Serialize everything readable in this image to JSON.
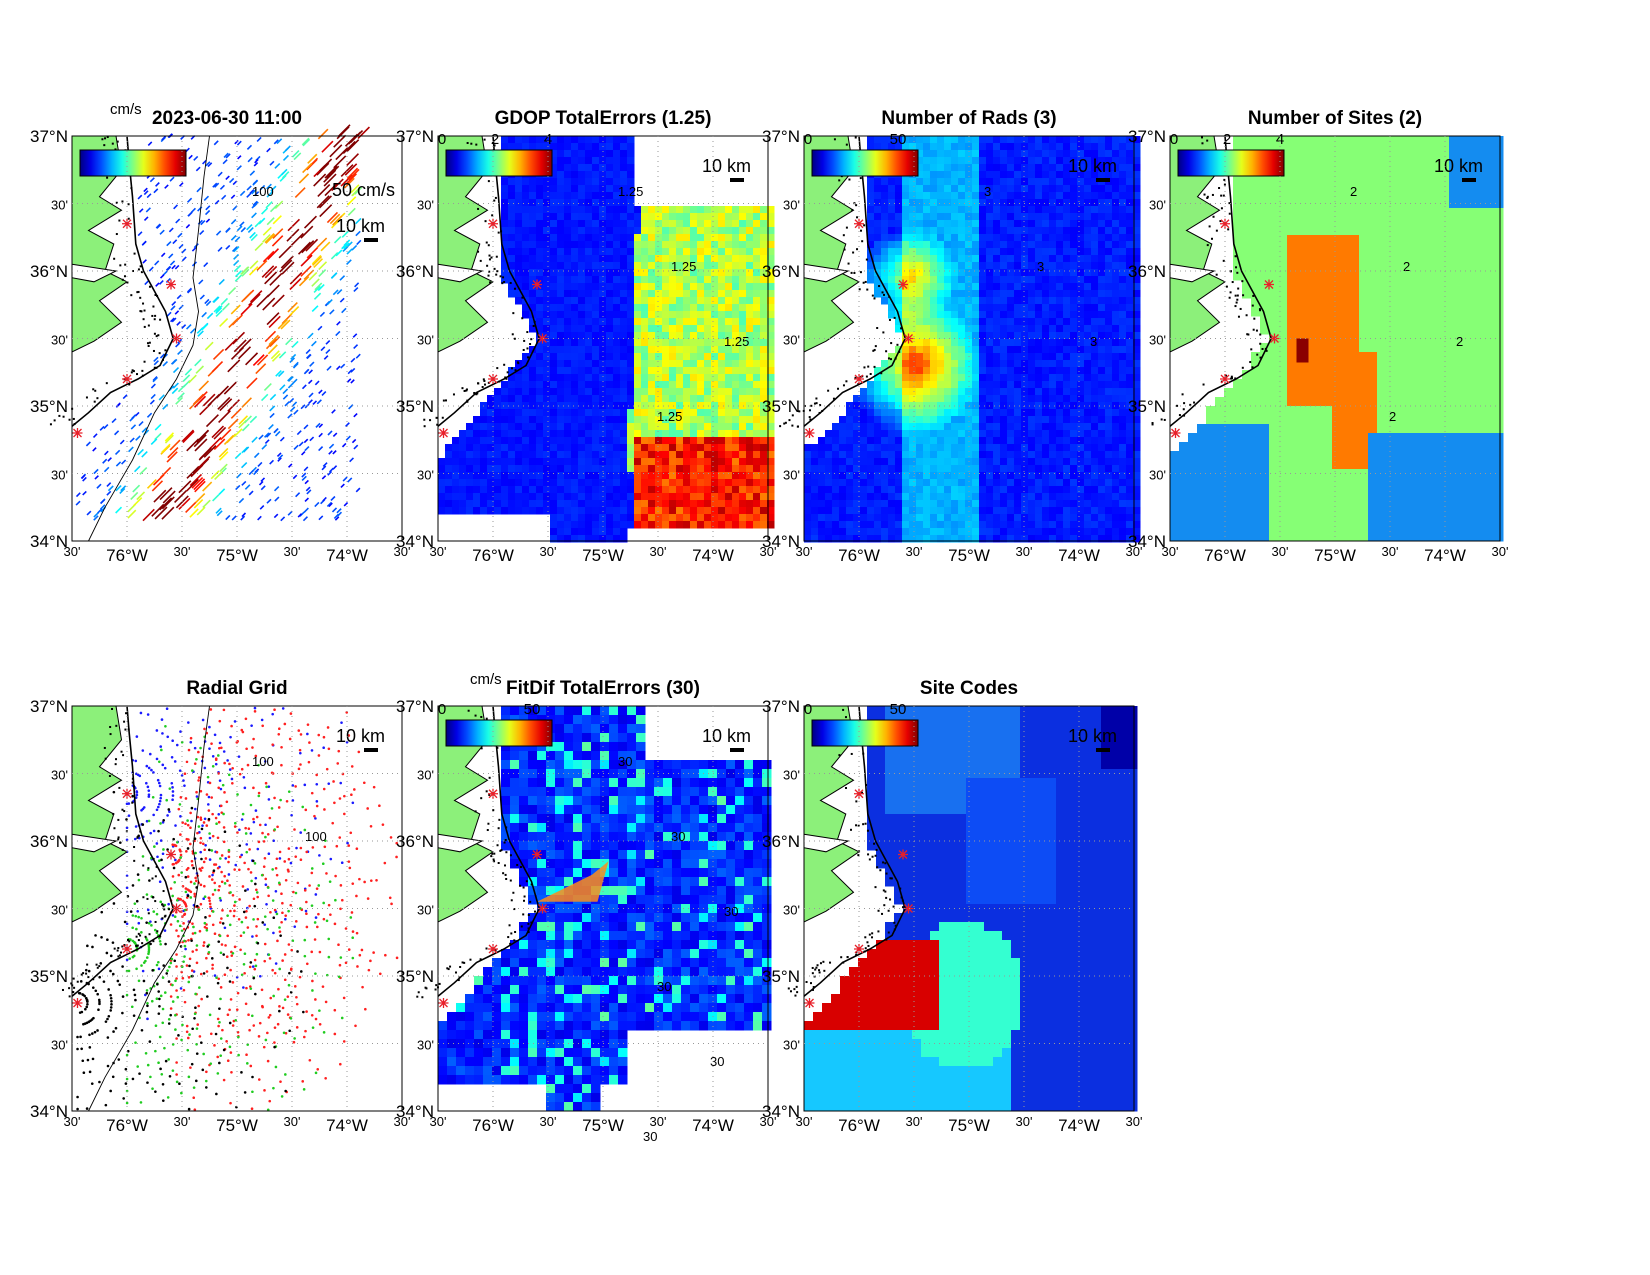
{
  "figure": {
    "timestamp": "2023-06-30 11:00",
    "overlap_label": "cm/s"
  },
  "axes": {
    "lat_labels": [
      "37°N",
      "30'",
      "36°N",
      "30'",
      "35°N",
      "30'",
      "34°N"
    ],
    "lon_labels": [
      "30'",
      "76°W",
      "30'",
      "75°W",
      "30'",
      "74°W",
      "30'"
    ],
    "lat_range": [
      34,
      37
    ],
    "lon_range": [
      -76.5,
      -73.5
    ]
  },
  "colors": {
    "land": "#8cf07a",
    "coast": "#000000",
    "site_marker": "#e8202a",
    "dark_blue": "#0000a8",
    "blue": "#0b2fe0",
    "sky": "#148cf0",
    "green": "#86ff75",
    "orange": "#ff7a00",
    "darkred": "#8a0000"
  },
  "panels": [
    {
      "id": "total-vectors",
      "title": "2023-06-30 11:00",
      "colorbar": {
        "unit": "cm/s",
        "ticks": []
      },
      "scale_label": "10 km",
      "vector_scale_label": "50 cm/s",
      "contour_labels": [
        "100"
      ]
    },
    {
      "id": "gdop",
      "title": "GDOP TotalErrors (1.25)",
      "colorbar": {
        "ticks": [
          "0",
          "2",
          "4"
        ]
      },
      "scale_label": "10 km",
      "contour_labels": [
        "1.25",
        "1.25",
        "1.25",
        "1.25"
      ]
    },
    {
      "id": "num-rads",
      "title": "Number of Rads (3)",
      "colorbar": {
        "ticks": [
          "0",
          "50"
        ]
      },
      "scale_label": "10 km",
      "contour_labels": [
        "3",
        "3",
        "3"
      ]
    },
    {
      "id": "num-sites",
      "title": "Number of Sites (2)",
      "colorbar": {
        "ticks": [
          "0",
          "2",
          "4"
        ]
      },
      "scale_label": "10 km",
      "contour_labels": [
        "2",
        "2",
        "2",
        "2"
      ]
    },
    {
      "id": "radial-grid",
      "title": "Radial Grid",
      "scale_label": "10 km",
      "contour_labels": [
        "100",
        "100"
      ]
    },
    {
      "id": "fitdif",
      "title": "FitDif TotalErrors (30)",
      "colorbar": {
        "unit": "cm/s",
        "ticks": [
          "0",
          "50"
        ]
      },
      "scale_label": "10 km",
      "contour_labels": [
        "30",
        "30",
        "30",
        "30",
        "30",
        "30"
      ]
    },
    {
      "id": "site-codes",
      "title": "Site Codes",
      "colorbar": {
        "ticks": [
          "0",
          "50"
        ]
      },
      "scale_label": "10 km"
    }
  ],
  "sites": [
    {
      "lon": -76.0,
      "lat": 36.35
    },
    {
      "lon": -75.6,
      "lat": 35.9
    },
    {
      "lon": -75.55,
      "lat": 35.5
    },
    {
      "lon": -76.0,
      "lat": 35.2
    },
    {
      "lon": -76.45,
      "lat": 34.8
    }
  ]
}
